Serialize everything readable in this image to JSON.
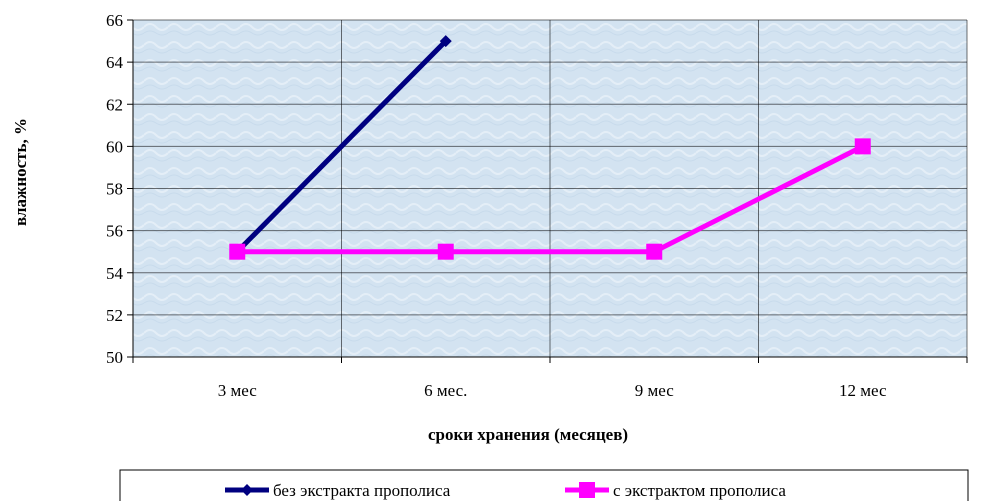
{
  "chart_data": {
    "type": "line",
    "categories": [
      "3 мес",
      "6 мес.",
      "9 мес",
      "12 мес"
    ],
    "series": [
      {
        "name": "без экстракта прополиса",
        "values": [
          55,
          65,
          null,
          null
        ],
        "color": "#000080",
        "marker": "diamond"
      },
      {
        "name": "с экстрактом прополиса",
        "values": [
          55,
          55,
          55,
          60
        ],
        "color": "#ff00ff",
        "marker": "square"
      }
    ],
    "xlabel": "сроки хранения (месяцев)",
    "ylabel": "влажность, %",
    "ylim": [
      50,
      66
    ],
    "y_step": 2,
    "y_ticks": [
      "50",
      "52",
      "54",
      "56",
      "58",
      "60",
      "62",
      "64",
      "66"
    ],
    "grid": true,
    "legend_position": "bottom",
    "plot_background": "#d3e3f1"
  }
}
